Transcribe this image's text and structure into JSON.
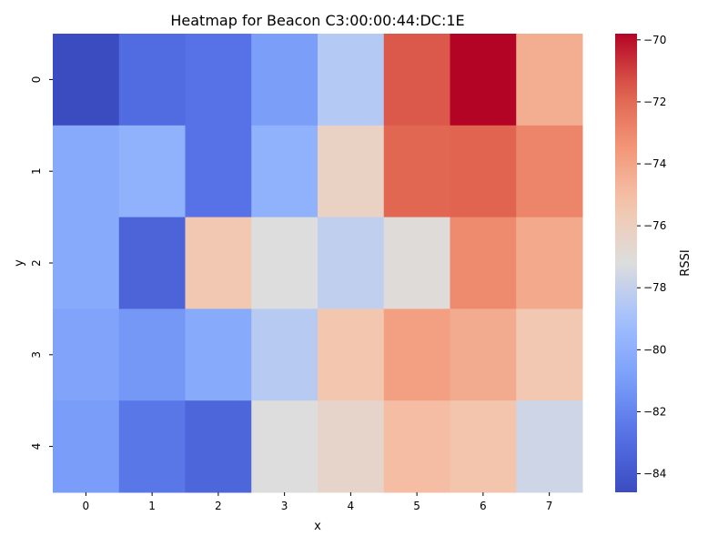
{
  "chart_data": {
    "type": "heatmap",
    "title": "Heatmap for Beacon C3:00:00:44:DC:1E",
    "xlabel": "x",
    "ylabel": "y",
    "colorbar_label": "RSSI",
    "colormap": "coolwarm",
    "x": [
      "0",
      "1",
      "2",
      "3",
      "4",
      "5",
      "6",
      "7"
    ],
    "y": [
      "0",
      "1",
      "2",
      "3",
      "4"
    ],
    "values": [
      [
        -84.6,
        -83.0,
        -82.7,
        -80.9,
        -78.5,
        -71.5,
        -69.8,
        -74.4
      ],
      [
        -80.3,
        -79.9,
        -82.7,
        -79.9,
        -76.2,
        -71.9,
        -71.8,
        -72.9
      ],
      [
        -80.3,
        -83.4,
        -75.5,
        -77.2,
        -78.1,
        -77.0,
        -73.1,
        -74.2
      ],
      [
        -80.6,
        -81.2,
        -80.3,
        -78.4,
        -75.4,
        -73.8,
        -74.3,
        -75.5
      ],
      [
        -81.0,
        -82.5,
        -83.3,
        -77.2,
        -76.5,
        -75.0,
        -75.3,
        -77.7
      ]
    ],
    "vmin": -84.6,
    "vmax": -69.8,
    "colorbar_ticks": [
      -70,
      -72,
      -74,
      -76,
      -78,
      -80,
      -82,
      -84
    ]
  }
}
